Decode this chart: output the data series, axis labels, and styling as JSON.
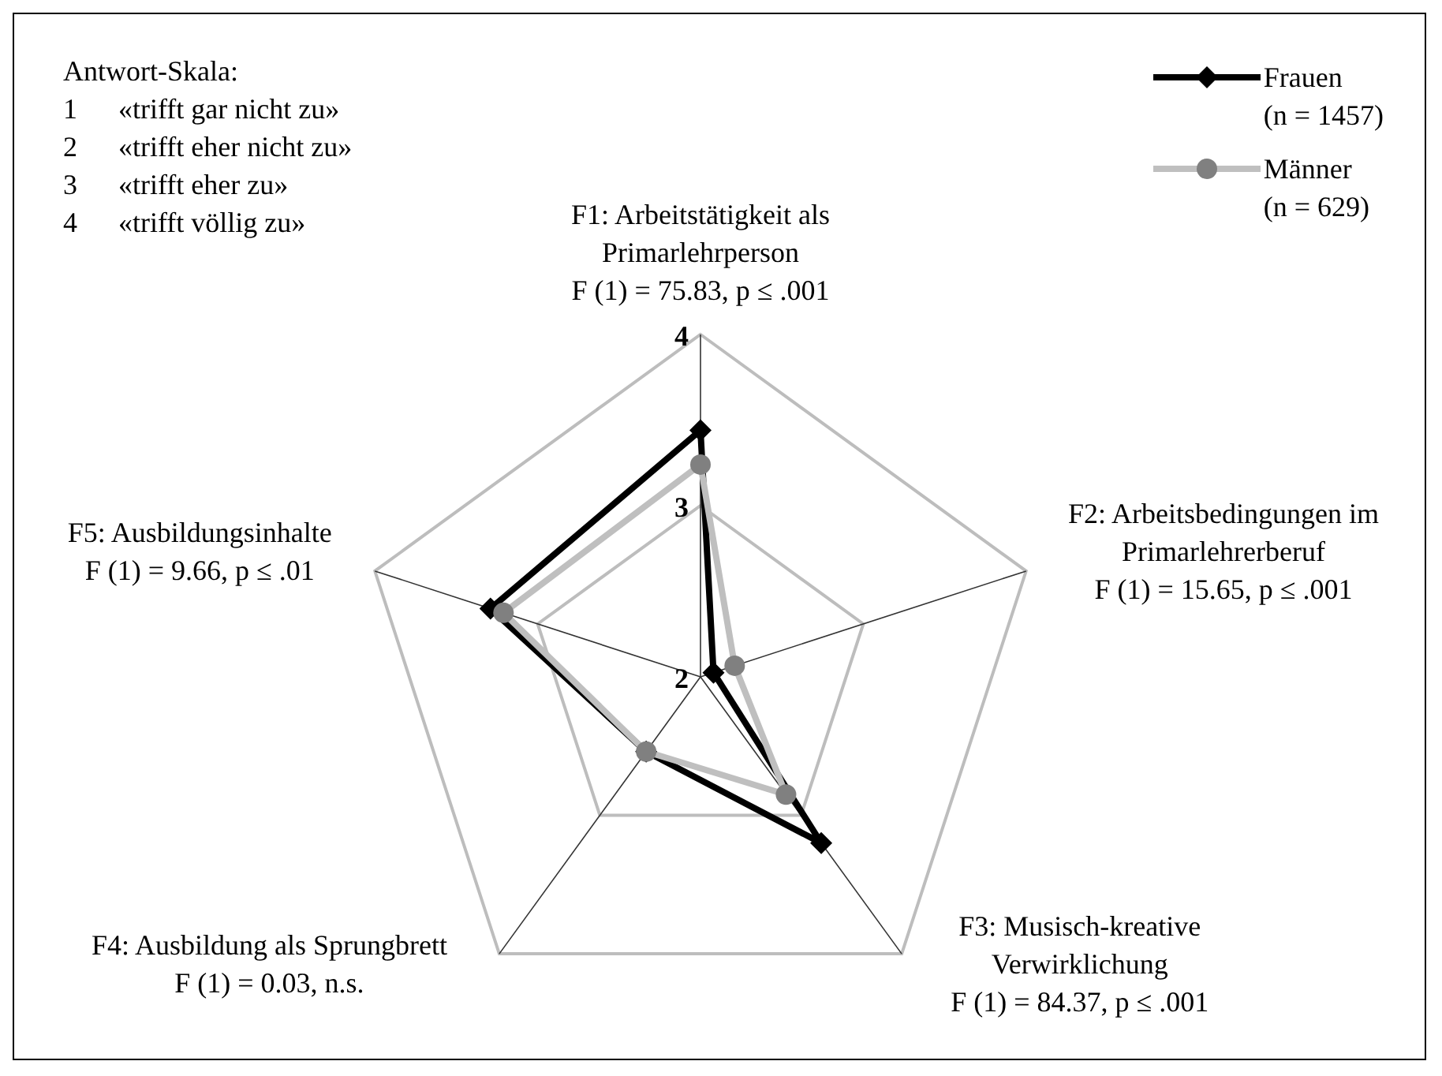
{
  "chart_data": {
    "type": "radar",
    "categories": [
      "F1: Arbeitstätigkeit als\nPrimarlehrperson\nF (1) = 75.83, p ≤ .001",
      "F2: Arbeitsbedingungen im\nPrimarlehrerberuf\nF (1) = 15.65, p ≤ .001",
      "F3: Musisch-kreative\nVerwirklichung\nF (1) = 84.37, p ≤ .001",
      "F4: Ausbildung als Sprungbrett\nF (1) = 0.03, n.s.",
      "F5: Ausbildungsinhalte\nF (1) = 9.66, p ≤ .01"
    ],
    "series": [
      {
        "name": "Frauen\n(n = 1457)",
        "color": "#000000",
        "marker": "diamond",
        "values": [
          3.44,
          2.08,
          3.2,
          2.54,
          3.29
        ]
      },
      {
        "name": "Männer\n(n = 629)",
        "color": "#bfbfbf",
        "marker": "circle",
        "values": [
          3.24,
          2.21,
          2.85,
          2.54,
          3.21
        ]
      }
    ],
    "ylim": [
      2,
      4
    ],
    "yticks": [
      2,
      3,
      4
    ],
    "grid": true,
    "legend": "top right",
    "annotations": [
      "Antwort-Skala:",
      "1 «trifft gar nicht zu»",
      "2 «trifft eher nicht zu»",
      "3 «trifft eher zu»",
      "4 «trifft völlig zu»"
    ]
  }
}
